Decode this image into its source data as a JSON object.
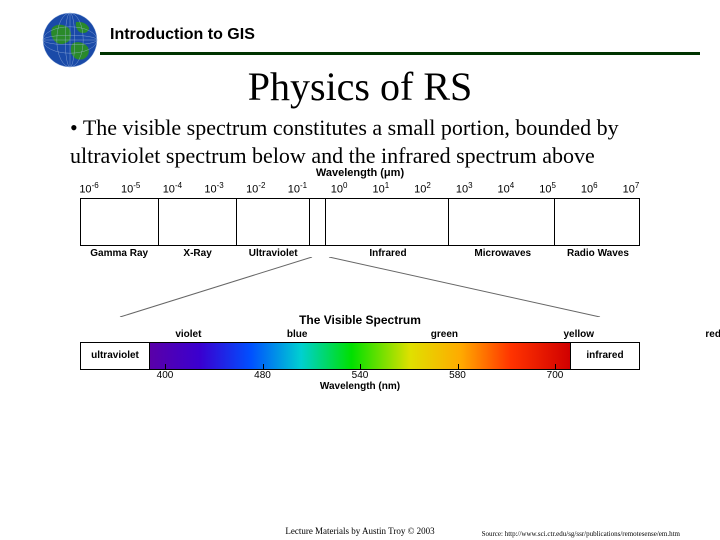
{
  "header": {
    "course_title": "Introduction to GIS",
    "line_color": "#003300"
  },
  "title": "Physics of RS",
  "bullet_text": "The visible spectrum constitutes a small portion, bounded by ultraviolet spectrum below and the infrared spectrum above",
  "em_spectrum": {
    "axis_label": "Wavelength (μm)",
    "wavelength_exponents": [
      -6,
      -5,
      -4,
      -3,
      -2,
      -1,
      0,
      1,
      2,
      3,
      4,
      5,
      6,
      7
    ],
    "bands": [
      {
        "label": "Gamma Ray",
        "width_pct": 14
      },
      {
        "label": "X-Ray",
        "width_pct": 14
      },
      {
        "label": "Ultraviolet",
        "width_pct": 13
      },
      {
        "label": "",
        "width_pct": 3
      },
      {
        "label": "Infrared",
        "width_pct": 22
      },
      {
        "label": "Microwaves",
        "width_pct": 19
      },
      {
        "label": "Radio Waves",
        "width_pct": 15
      }
    ],
    "projection": {
      "top_left_pct": 41,
      "top_right_pct": 44,
      "color": "#666666"
    }
  },
  "visible_spectrum": {
    "title": "The Visible Spectrum",
    "left_label": "ultraviolet",
    "right_label": "infrared",
    "bands": [
      {
        "label": "violet",
        "width_pct": 12
      },
      {
        "label": "blue",
        "width_pct": 22
      },
      {
        "label": "green",
        "width_pct": 24
      },
      {
        "label": "yellow",
        "width_pct": 18
      },
      {
        "label": "red",
        "width_pct": 24
      }
    ],
    "gradient_stops": [
      {
        "pct": 0,
        "color": "#5a00a8"
      },
      {
        "pct": 12,
        "color": "#3a00d0"
      },
      {
        "pct": 24,
        "color": "#0050ff"
      },
      {
        "pct": 36,
        "color": "#00d0d0"
      },
      {
        "pct": 48,
        "color": "#00e000"
      },
      {
        "pct": 62,
        "color": "#e0e000"
      },
      {
        "pct": 74,
        "color": "#ffaa00"
      },
      {
        "pct": 86,
        "color": "#ff3300"
      },
      {
        "pct": 100,
        "color": "#d00000"
      }
    ],
    "axis_label": "Wavelength (nm)",
    "ticks": [
      400,
      480,
      540,
      580,
      700
    ]
  },
  "footer": {
    "credit": "Lecture Materials by Austin Troy © 2003",
    "source": "Source: http://www.sci.ctr.edu/sg/ssr/publications/remotesense/em.htm"
  },
  "globe": {
    "ocean_color": "#1a4aa8",
    "land_color": "#2a8a2a",
    "grid_color": "#a0b8e0"
  }
}
